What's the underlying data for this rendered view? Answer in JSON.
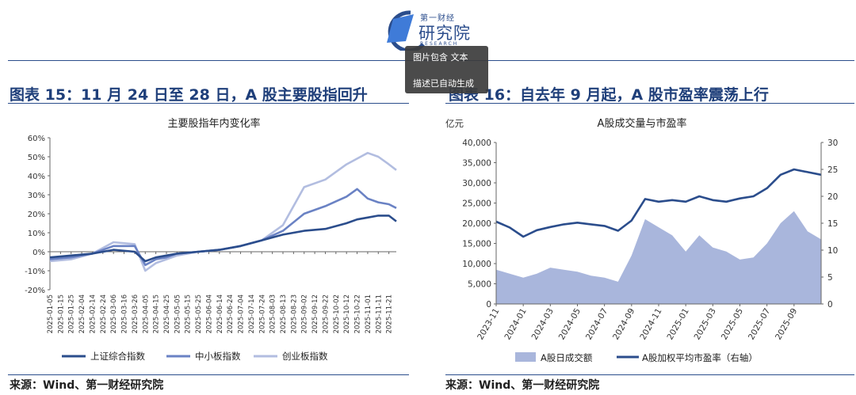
{
  "header": {
    "logo_brand": "第一财经",
    "logo_name": "研究院",
    "logo_sub": "RESEARCH",
    "tooltip_line1": "图片包含 文本",
    "tooltip_line2": "描述已自动生成"
  },
  "figure15": {
    "title": "图表 15：11 月 24 日至 28 日，A 股主要股指回升",
    "source": "来源：Wind、第一财经研究院"
  },
  "figure16": {
    "title": "图表 16：自去年 9 月起，A 股市盈率震荡上行",
    "source": "来源：Wind、第一财经研究院"
  },
  "chart_data": [
    {
      "type": "line",
      "title": "主要股指年内变化率",
      "ylim": [
        -20,
        60
      ],
      "yticks": [
        -20,
        -10,
        0,
        10,
        20,
        30,
        40,
        50,
        60
      ],
      "ytick_labels": [
        "-20%",
        "-10%",
        "0%",
        "10%",
        "20%",
        "30%",
        "40%",
        "50%",
        "60%"
      ],
      "grid": false,
      "legend": "bottom",
      "x": [
        "2025-01-05",
        "2025-01-25",
        "2025-02-14",
        "2025-03-06",
        "2025-03-26",
        "2025-04-05",
        "2025-04-15",
        "2025-04-25",
        "2025-05-05",
        "2025-05-25",
        "2025-06-14",
        "2025-07-04",
        "2025-07-24",
        "2025-08-13",
        "2025-09-02",
        "2025-09-22",
        "2025-10-12",
        "2025-10-22",
        "2025-11-01",
        "2025-11-11",
        "2025-11-21",
        "2025-11-28"
      ],
      "x_tick_labels": [
        "2025-01-05",
        "2025-01-15",
        "2025-01-25",
        "2025-02-04",
        "2025-02-14",
        "2025-02-24",
        "2025-03-06",
        "2025-03-16",
        "2025-03-26",
        "2025-04-05",
        "2025-04-15",
        "2025-04-25",
        "2025-05-05",
        "2025-05-15",
        "2025-05-25",
        "2025-06-04",
        "2025-06-14",
        "2025-06-24",
        "2025-07-04",
        "2025-07-14",
        "2025-07-24",
        "2025-08-03",
        "2025-08-13",
        "2025-08-23",
        "2025-09-02",
        "2025-09-12",
        "2025-09-22",
        "2025-10-02",
        "2025-10-12",
        "2025-10-22",
        "2025-11-01",
        "2025-11-11",
        "2025-11-21"
      ],
      "series": [
        {
          "name": "上证综合指数",
          "color": "#2b4d8c",
          "values": [
            -3,
            -2,
            -1,
            1,
            0,
            -5,
            -3,
            -2,
            -1,
            0,
            1,
            3,
            6,
            9,
            11,
            12,
            15,
            17,
            18,
            19,
            19,
            16
          ]
        },
        {
          "name": "中小板指数",
          "color": "#6a82c4",
          "values": [
            -4,
            -3,
            -1,
            3,
            3,
            -7,
            -4,
            -3,
            -1,
            0,
            1,
            3,
            6,
            11,
            20,
            24,
            29,
            33,
            28,
            26,
            25,
            23
          ]
        },
        {
          "name": "创业板指数",
          "color": "#b2bde0",
          "values": [
            -5,
            -4,
            -1,
            5,
            4,
            -10,
            -6,
            -4,
            -2,
            0,
            1,
            3,
            6,
            14,
            34,
            38,
            46,
            49,
            52,
            50,
            46,
            43
          ]
        }
      ]
    },
    {
      "type": "area+line",
      "title": "A股成交量与市盈率",
      "ylabel": "亿元",
      "ylim": [
        0,
        40000
      ],
      "yticks": [
        0,
        5000,
        10000,
        15000,
        20000,
        25000,
        30000,
        35000,
        40000
      ],
      "ytick_labels": [
        "0",
        "5,000",
        "10,000",
        "15,000",
        "20,000",
        "25,000",
        "30,000",
        "35,000",
        "40,000"
      ],
      "y2lim": [
        0,
        30
      ],
      "y2ticks": [
        0,
        5,
        10,
        15,
        20,
        25,
        30
      ],
      "x_tick_labels": [
        "2023-11",
        "2024-01",
        "2024-03",
        "2024-05",
        "2024-07",
        "2024-09",
        "2024-11",
        "2025-01",
        "2025-03",
        "2025-05",
        "2025-07",
        "2025-09"
      ],
      "x": [
        "2023-11",
        "2023-12",
        "2024-01",
        "2024-02",
        "2024-03",
        "2024-04",
        "2024-05",
        "2024-06",
        "2024-07",
        "2024-08",
        "2024-09",
        "2024-10",
        "2024-11",
        "2024-12",
        "2025-01",
        "2025-02",
        "2025-03",
        "2025-04",
        "2025-05",
        "2025-06",
        "2025-07",
        "2025-08",
        "2025-09",
        "2025-10",
        "2025-11"
      ],
      "legend": "bottom",
      "series": [
        {
          "name": "A股日成交额",
          "color": "#a9b6dc",
          "axis": "left",
          "type": "area",
          "values": [
            8500,
            7500,
            6500,
            7500,
            9000,
            8500,
            8000,
            7000,
            6500,
            5500,
            12000,
            21000,
            19000,
            17000,
            13000,
            17000,
            14000,
            13000,
            11000,
            11500,
            15000,
            20000,
            23000,
            18000,
            16000
          ]
        },
        {
          "name": "A股加权平均市盈率（右轴）",
          "color": "#2b4d8c",
          "axis": "right",
          "type": "line",
          "values": [
            15.3,
            14.2,
            12.5,
            13.7,
            14.3,
            14.8,
            15.1,
            14.8,
            14.5,
            13.6,
            15.5,
            19.5,
            19.0,
            19.3,
            19.0,
            20.0,
            19.3,
            19.0,
            19.6,
            20.0,
            21.5,
            24.0,
            25.0,
            24.5,
            24.0
          ]
        }
      ]
    }
  ]
}
